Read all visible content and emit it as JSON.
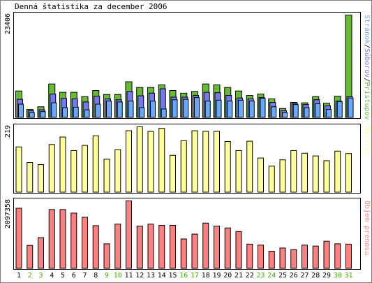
{
  "title": "Denná štatistika za december 2006",
  "colors": {
    "pristupov": "#66bb33",
    "suborov": "#7777ee",
    "stranok": "#66aaff",
    "navstev": "#ffff99",
    "objem": "#ff8080",
    "weekend_label": "#44aa00",
    "weekday_label": "#000000"
  },
  "chart_data": [
    {
      "type": "bar",
      "panel": "top",
      "ymax_label": "23406",
      "ylim": [
        0,
        23406
      ],
      "legend_vertical": [
        "Stránok",
        "/",
        "Súborov",
        "/",
        "Prístupov"
      ],
      "categories": [
        "1",
        "2",
        "3",
        "4",
        "5",
        "6",
        "7",
        "8",
        "9",
        "10",
        "11",
        "12",
        "13",
        "14",
        "15",
        "16",
        "17",
        "18",
        "19",
        "20",
        "21",
        "22",
        "23",
        "24",
        "25",
        "26",
        "27",
        "28",
        "29",
        "30",
        "31"
      ],
      "series": [
        {
          "name": "Prístupov",
          "values": [
            6100,
            1900,
            2500,
            7700,
            5800,
            5800,
            4800,
            6200,
            5300,
            5300,
            8200,
            6900,
            6900,
            7500,
            6200,
            5600,
            6000,
            7700,
            7500,
            6900,
            6100,
            5100,
            5400,
            4300,
            2100,
            3500,
            3400,
            4800,
            3300,
            4900,
            23406
          ]
        },
        {
          "name": "Súborov",
          "values": [
            4200,
            1600,
            1800,
            5400,
            4400,
            4300,
            3600,
            4900,
            4300,
            4100,
            6000,
            5000,
            5600,
            6600,
            4700,
            4700,
            5100,
            5800,
            5700,
            5100,
            4500,
            4300,
            4600,
            3500,
            1600,
            3300,
            3000,
            4100,
            2700,
            3800,
            4800
          ]
        },
        {
          "name": "Stránok",
          "values": [
            3100,
            1200,
            1400,
            3400,
            2300,
            2400,
            1800,
            3100,
            3800,
            3600,
            3800,
            2300,
            3800,
            2000,
            4100,
            4200,
            4600,
            3800,
            4000,
            3800,
            4000,
            3800,
            4400,
            2500,
            1200,
            3000,
            2300,
            3200,
            1900,
            3700,
            4500
          ]
        }
      ]
    },
    {
      "type": "bar",
      "panel": "middle",
      "ymax_label": "219",
      "ylim": [
        0,
        219
      ],
      "legend_vertical": [
        "Návštev"
      ],
      "categories": [
        "1",
        "2",
        "3",
        "4",
        "5",
        "6",
        "7",
        "8",
        "9",
        "10",
        "11",
        "12",
        "13",
        "14",
        "15",
        "16",
        "17",
        "18",
        "19",
        "20",
        "21",
        "22",
        "23",
        "24",
        "25",
        "26",
        "27",
        "28",
        "29",
        "30",
        "31"
      ],
      "series": [
        {
          "name": "Návštev",
          "values": [
            152,
            100,
            93,
            160,
            185,
            140,
            157,
            189,
            111,
            143,
            206,
            219,
            204,
            214,
            124,
            173,
            206,
            204,
            204,
            170,
            140,
            171,
            115,
            88,
            109,
            140,
            131,
            122,
            106,
            138,
            130
          ]
        }
      ]
    },
    {
      "type": "bar",
      "panel": "bottom",
      "ymax_label": "2097358",
      "ylim": [
        0,
        2097358
      ],
      "legend_vertical": [
        "Objem",
        " ",
        "prenosu"
      ],
      "categories": [
        "1",
        "2",
        "3",
        "4",
        "5",
        "6",
        "7",
        "8",
        "9",
        "10",
        "11",
        "12",
        "13",
        "14",
        "15",
        "16",
        "17",
        "18",
        "19",
        "20",
        "21",
        "22",
        "23",
        "24",
        "25",
        "26",
        "27",
        "28",
        "29",
        "30",
        "31"
      ],
      "series": [
        {
          "name": "Objem prenosu",
          "values": [
            1870000,
            720000,
            960000,
            1830000,
            1830000,
            1720000,
            1590000,
            1330000,
            770000,
            1380000,
            2097358,
            1320000,
            1380000,
            1340000,
            1340000,
            920000,
            1070000,
            1410000,
            1320000,
            1260000,
            1150000,
            760000,
            730000,
            540000,
            640000,
            590000,
            730000,
            700000,
            850000,
            770000,
            760000
          ]
        }
      ]
    }
  ],
  "x_labels": [
    {
      "text": "1",
      "weekend": false
    },
    {
      "text": "2",
      "weekend": true
    },
    {
      "text": "3",
      "weekend": true
    },
    {
      "text": "4",
      "weekend": false
    },
    {
      "text": "5",
      "weekend": false
    },
    {
      "text": "6",
      "weekend": false
    },
    {
      "text": "7",
      "weekend": false
    },
    {
      "text": "8",
      "weekend": false
    },
    {
      "text": "9",
      "weekend": true
    },
    {
      "text": "10",
      "weekend": true
    },
    {
      "text": "11",
      "weekend": false
    },
    {
      "text": "12",
      "weekend": false
    },
    {
      "text": "13",
      "weekend": false
    },
    {
      "text": "14",
      "weekend": false
    },
    {
      "text": "15",
      "weekend": false
    },
    {
      "text": "16",
      "weekend": true
    },
    {
      "text": "17",
      "weekend": true
    },
    {
      "text": "18",
      "weekend": false
    },
    {
      "text": "19",
      "weekend": false
    },
    {
      "text": "20",
      "weekend": false
    },
    {
      "text": "21",
      "weekend": false
    },
    {
      "text": "22",
      "weekend": false
    },
    {
      "text": "23",
      "weekend": true
    },
    {
      "text": "24",
      "weekend": true
    },
    {
      "text": "25",
      "weekend": false
    },
    {
      "text": "26",
      "weekend": false
    },
    {
      "text": "27",
      "weekend": false
    },
    {
      "text": "28",
      "weekend": false
    },
    {
      "text": "29",
      "weekend": false
    },
    {
      "text": "30",
      "weekend": true
    },
    {
      "text": "31",
      "weekend": true
    }
  ]
}
